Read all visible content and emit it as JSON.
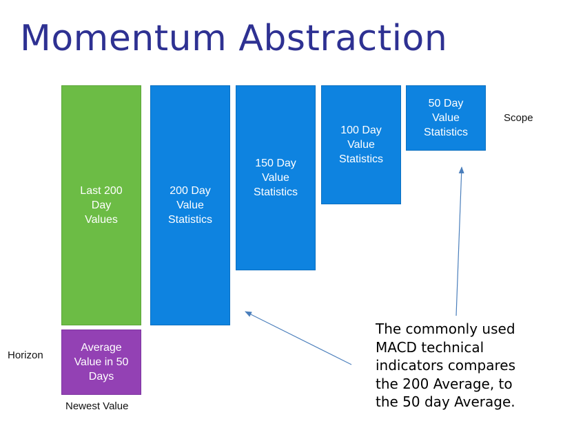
{
  "title": "Momentum Abstraction",
  "boxes": {
    "last200": "Last 200\nDay\nValues",
    "avg50": "Average\nValue in 50\nDays",
    "stat200": "200 Day\nValue\nStatistics",
    "stat150": "150 Day\nValue\nStatistics",
    "stat100": "100 Day\nValue\nStatistics",
    "stat50": "50 Day\nValue\nStatistics"
  },
  "labels": {
    "scope": "Scope",
    "horizon": "Horizon",
    "newest": "Newest Value"
  },
  "note": "The commonly used\nMACD technical\nindicators compares\nthe 200 Average,  to\nthe 50 day Average.",
  "colors": {
    "title": "#2e3192",
    "green": "#6cbc45",
    "blue": "#0e83e0",
    "purple": "#9341b4",
    "arrow": "#4a7ebb"
  }
}
